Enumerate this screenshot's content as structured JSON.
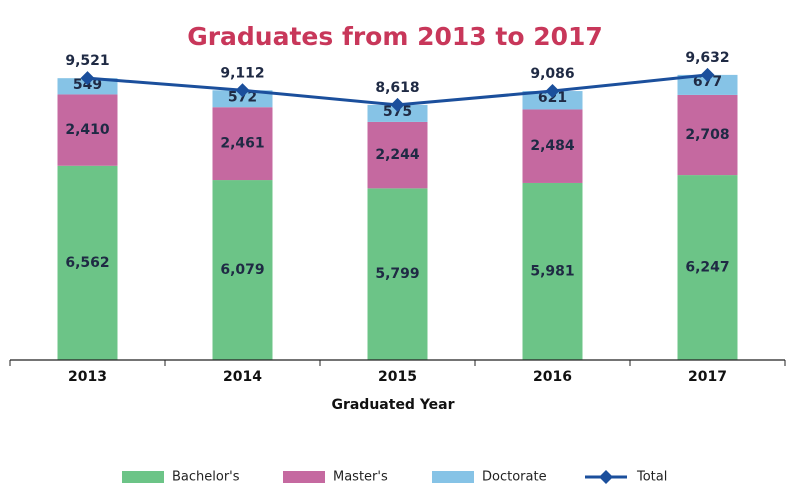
{
  "chart_data": {
    "type": "bar",
    "title": "Graduates from 2013 to 2017",
    "xlabel": "Graduated Year",
    "ylabel": "",
    "categories": [
      "2013",
      "2014",
      "2015",
      "2016",
      "2017"
    ],
    "series": [
      {
        "name": "Bachelor's",
        "values": [
          6562,
          6079,
          5799,
          5981,
          6247
        ],
        "labels": [
          "6,562",
          "6,079",
          "5,799",
          "5,981",
          "6,247"
        ],
        "color": "#6cc487"
      },
      {
        "name": "Master's",
        "values": [
          2410,
          2461,
          2244,
          2484,
          2708
        ],
        "labels": [
          "2,410",
          "2,461",
          "2,244",
          "2,484",
          "2,708"
        ],
        "color": "#c569a0"
      },
      {
        "name": "Doctorate",
        "values": [
          549,
          572,
          575,
          621,
          677
        ],
        "labels": [
          "549",
          "572",
          "575",
          "621",
          "677"
        ],
        "color": "#86c3e6"
      }
    ],
    "total": {
      "name": "Total",
      "values": [
        9521,
        9112,
        8618,
        9086,
        9632
      ],
      "labels": [
        "9,521",
        "9,112",
        "8,618",
        "9,086",
        "9,632"
      ],
      "color": "#1b4f9c"
    },
    "ylim": [
      0,
      10000
    ],
    "grid": false,
    "legend": "bottom"
  }
}
